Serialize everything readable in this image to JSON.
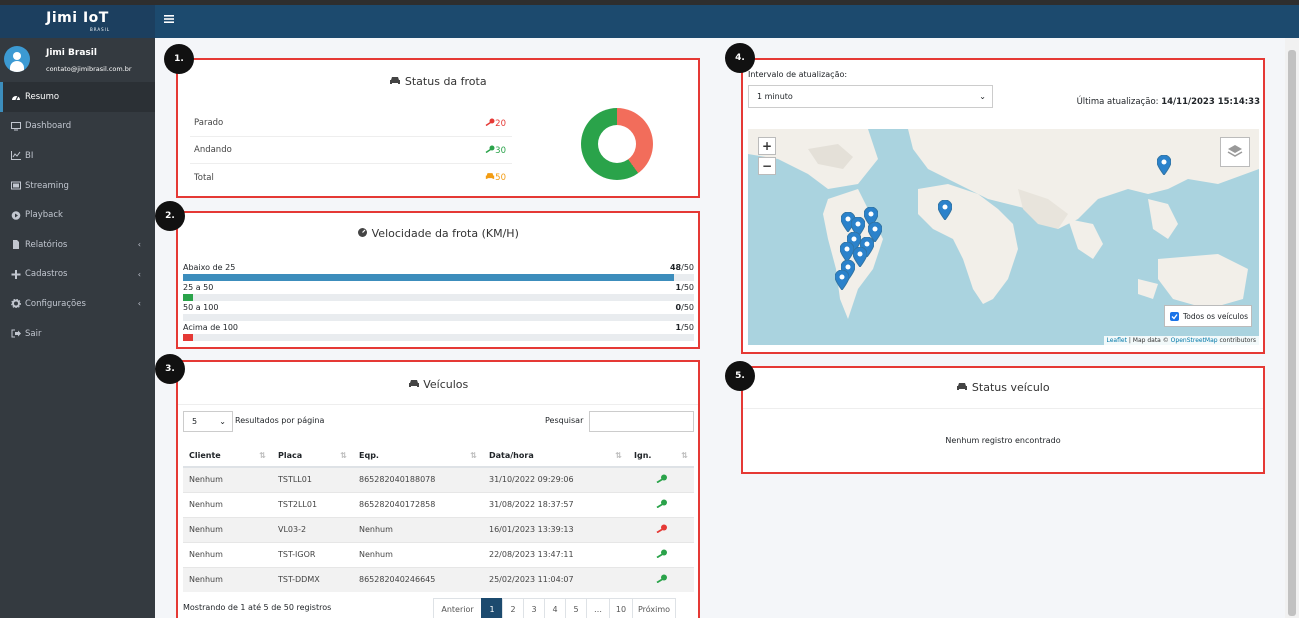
{
  "brand": {
    "logo_text": "Jimi IoT",
    "logo_sub": "BRASIL"
  },
  "user": {
    "name": "Jimi Brasil",
    "email": "contato@jimibrasil.com.br"
  },
  "sidebar": {
    "items": [
      {
        "label": "Resumo",
        "icon": "gauge-icon"
      },
      {
        "label": "Dashboard",
        "icon": "desktop-icon"
      },
      {
        "label": "BI",
        "icon": "chart-line-icon"
      },
      {
        "label": "Streaming",
        "icon": "video-icon"
      },
      {
        "label": "Playback",
        "icon": "play-circle-icon"
      },
      {
        "label": "Relatórios",
        "icon": "file-icon"
      },
      {
        "label": "Cadastros",
        "icon": "plus-icon"
      },
      {
        "label": "Configurações",
        "icon": "cogs-icon"
      },
      {
        "label": "Sair",
        "icon": "sign-out-icon"
      }
    ]
  },
  "badges": {
    "b1": "1.",
    "b2": "2.",
    "b3": "3.",
    "b4": "4.",
    "b5": "5."
  },
  "fleet_status": {
    "title": "Status da frota",
    "rows": [
      {
        "label": "Parado",
        "value": "20",
        "color": "#e53935"
      },
      {
        "label": "Andando",
        "value": "30",
        "color": "#2aa34a"
      },
      {
        "label": "Total",
        "value": "50",
        "color": "#f39c12"
      }
    ],
    "donut": {
      "stopped": 20,
      "moving": 30,
      "stopped_color": "#f26d5b",
      "moving_color": "#2aa34a"
    }
  },
  "fleet_speed": {
    "title": "Velocidade da frota (KM/H)",
    "rows": [
      {
        "label": "Abaixo de 25",
        "count": "48",
        "total": "/50",
        "fraction": 0.96,
        "color": "#3c8dbc"
      },
      {
        "label": "25 a 50",
        "count": "1",
        "total": "/50",
        "fraction": 0.02,
        "color": "#2aa34a"
      },
      {
        "label": "50 a 100",
        "count": "0",
        "total": "/50",
        "fraction": 0.0,
        "color": "#f39c12"
      },
      {
        "label": "Acima de 100",
        "count": "1",
        "total": "/50",
        "fraction": 0.02,
        "color": "#e53935"
      }
    ]
  },
  "vehicles": {
    "title": "Veículos",
    "page_size": "5",
    "page_size_label": "Resultados por página",
    "search_label": "Pesquisar",
    "columns": [
      "Cliente",
      "Placa",
      "Eqp.",
      "Data/hora",
      "Ign."
    ],
    "rows": [
      {
        "cliente": "Nenhum",
        "placa": "TSTLL01",
        "eqp": "865282040188078",
        "data": "31/10/2022 09:29:06",
        "ign": "on"
      },
      {
        "cliente": "Nenhum",
        "placa": "TST2LL01",
        "eqp": "865282040172858",
        "data": "31/08/2022 18:37:57",
        "ign": "on"
      },
      {
        "cliente": "Nenhum",
        "placa": "VL03-2",
        "eqp": "Nenhum",
        "data": "16/01/2023 13:39:13",
        "ign": "off"
      },
      {
        "cliente": "Nenhum",
        "placa": "TST-IGOR",
        "eqp": "Nenhum",
        "data": "22/08/2023 13:47:11",
        "ign": "on"
      },
      {
        "cliente": "Nenhum",
        "placa": "TST-DDMX",
        "eqp": "865282040246645",
        "data": "25/02/2023 11:04:07",
        "ign": "on"
      }
    ],
    "footer_text": "Mostrando de 1 até 5 de 50 registros",
    "pager": {
      "prev": "Anterior",
      "pages": [
        "1",
        "2",
        "3",
        "4",
        "5",
        "…",
        "10"
      ],
      "next": "Próximo",
      "current": "1"
    }
  },
  "map_panel": {
    "interval_label": "Intervalo de atualização:",
    "interval_value": "1 minuto",
    "last_update_label": "Última atualização:",
    "last_update_value": "14/11/2023 15:14:33",
    "zoom_in": "+",
    "zoom_out": "−",
    "all_vehicles_label": "Todos os veículos",
    "attribution": {
      "leaflet": "Leaflet",
      "sep": " | Map data © ",
      "osm": "OpenStreetMap",
      "contrib": " contributors"
    }
  },
  "vehicle_status": {
    "title": "Status veículo",
    "empty": "Nenhum registro encontrado"
  }
}
